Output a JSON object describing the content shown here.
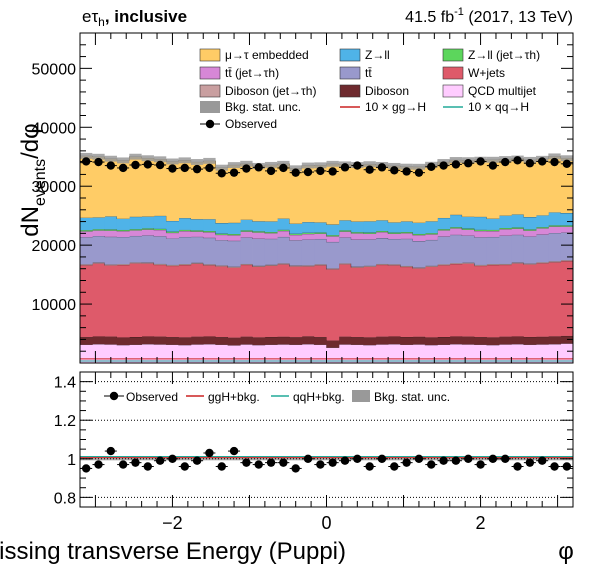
{
  "header": {
    "channel": "eτ",
    "channel_sub": "h",
    "category": ", inclusive",
    "lumi": "41.5 fb",
    "lumi_exp": "-1",
    "conditions": " (2017, 13 TeV)"
  },
  "axes": {
    "ylabel_main": "dN",
    "ylabel_sub": "events",
    "ylabel_tail": "/dφ",
    "xlabel": "Missing transverse Energy (Puppi)",
    "xlabel_symbol": "φ"
  },
  "legend_main": [
    {
      "label": "μ→τ embedded",
      "color": "#ffcc66",
      "kind": "box"
    },
    {
      "label": "Z→ll",
      "color": "#4fb3e8",
      "kind": "box"
    },
    {
      "label": "Z→ll (jet→τh)",
      "color": "#5cd65c",
      "kind": "box"
    },
    {
      "label": "tt̄ (jet→τh)",
      "color": "#d787d7",
      "kind": "box"
    },
    {
      "label": "tt̄",
      "color": "#9999cc",
      "kind": "box"
    },
    {
      "label": "W+jets",
      "color": "#de5a6a",
      "kind": "box"
    },
    {
      "label": "Diboson (jet→τh)",
      "color": "#c99fa0",
      "kind": "box"
    },
    {
      "label": "Diboson",
      "color": "#6e2a2e",
      "kind": "box"
    },
    {
      "label": "QCD multijet",
      "color": "#ffccff",
      "kind": "box"
    },
    {
      "label": "Bkg. stat. unc.",
      "color": "#999999",
      "kind": "band"
    },
    {
      "label": "10 × gg→H",
      "color": "#cc2222",
      "kind": "line"
    },
    {
      "label": "10 × qq→H",
      "color": "#22aa99",
      "kind": "line"
    },
    {
      "label": "Observed",
      "color": "#000000",
      "kind": "marker"
    }
  ],
  "legend_ratio": [
    {
      "label": "Observed",
      "kind": "marker",
      "color": "#000000"
    },
    {
      "label": "ggH+bkg.",
      "kind": "line",
      "color": "#cc2222"
    },
    {
      "label": "qqH+bkg.",
      "kind": "line",
      "color": "#22aa99"
    },
    {
      "label": "Bkg. stat. unc.",
      "kind": "band",
      "color": "#999999"
    }
  ],
  "chart_data": {
    "type": "bar",
    "stacked": true,
    "xlabel": "Missing transverse Energy (Puppi)  φ",
    "ylabel": "dNevents/dφ",
    "xlim": [
      -3.2,
      3.2
    ],
    "ylim": [
      0,
      56000
    ],
    "yticks": [
      10000,
      20000,
      30000,
      40000,
      50000
    ],
    "xticks": [
      -2,
      0,
      2
    ],
    "ratio_ylim": [
      0.75,
      1.45
    ],
    "ratio_yticks": [
      0.8,
      1,
      1.2,
      1.4
    ],
    "ratio_ylabels": [
      "0.8",
      "1",
      "1.2",
      "1.4"
    ],
    "n_bins": 40,
    "series": [
      {
        "name": "QCD multijet",
        "values": [
          3100,
          3200,
          3150,
          3050,
          3100,
          3200,
          3150,
          3100,
          3050,
          3150,
          3200,
          3100,
          3000,
          3150,
          3050,
          3100,
          3150,
          3100,
          3200,
          3100,
          2600,
          3150,
          3100,
          3050,
          3150,
          3200,
          3100,
          3150,
          3050,
          3100,
          3200,
          3150,
          3100,
          3050,
          3150,
          3200,
          3100,
          3150,
          3200,
          3300
        ]
      },
      {
        "name": "Diboson",
        "values": [
          1300,
          1300,
          1320,
          1280,
          1310,
          1300,
          1320,
          1300,
          1290,
          1310,
          1300,
          1300,
          1290,
          1310,
          1300,
          1320,
          1300,
          1290,
          1310,
          1300,
          1200,
          1310,
          1300,
          1290,
          1310,
          1300,
          1320,
          1300,
          1290,
          1310,
          1300,
          1320,
          1300,
          1290,
          1310,
          1300,
          1320,
          1300,
          1310,
          1300
        ]
      },
      {
        "name": "W+jets",
        "values": [
          12200,
          12400,
          12100,
          12300,
          12500,
          12400,
          12200,
          12100,
          12300,
          12400,
          12100,
          12000,
          11900,
          12200,
          12000,
          12100,
          12300,
          12000,
          11900,
          12200,
          12100,
          12300,
          11800,
          12000,
          12200,
          12100,
          11900,
          11600,
          12000,
          12200,
          12300,
          12400,
          12100,
          12300,
          12200,
          12400,
          12300,
          12500,
          12600,
          12700
        ]
      },
      {
        "name": "Diboson (jet→τh)",
        "values": [
          150,
          150,
          150,
          150,
          150,
          150,
          150,
          150,
          150,
          150,
          150,
          150,
          150,
          150,
          150,
          150,
          150,
          150,
          150,
          150,
          150,
          150,
          150,
          150,
          150,
          150,
          150,
          150,
          150,
          150,
          150,
          150,
          150,
          150,
          150,
          150,
          150,
          150,
          150,
          150
        ]
      },
      {
        "name": "tt̄",
        "values": [
          4600,
          4500,
          4700,
          4600,
          4500,
          4600,
          4700,
          4500,
          4600,
          4400,
          4500,
          4300,
          4400,
          4500,
          4600,
          4400,
          4500,
          4300,
          4400,
          4300,
          4500,
          4400,
          4600,
          4500,
          4400,
          4300,
          4600,
          4500,
          4400,
          4700,
          4800,
          4600,
          4700,
          4600,
          4800,
          4700,
          4600,
          4700,
          4800,
          4700
        ]
      },
      {
        "name": "tt̄ (jet→τh)",
        "values": [
          1000,
          950,
          1050,
          1000,
          950,
          1000,
          1050,
          950,
          1000,
          900,
          950,
          900,
          950,
          1000,
          1050,
          950,
          1000,
          900,
          950,
          900,
          950,
          1000,
          1050,
          950,
          1000,
          900,
          950,
          1000,
          950,
          1050,
          1100,
          1000,
          1050,
          1000,
          1100,
          1050,
          1000,
          1050,
          1100,
          1000
        ]
      },
      {
        "name": "Z→ll (jet→τh)",
        "values": [
          200,
          200,
          200,
          200,
          200,
          200,
          200,
          200,
          200,
          200,
          200,
          200,
          200,
          200,
          200,
          200,
          200,
          200,
          200,
          200,
          200,
          200,
          200,
          200,
          200,
          200,
          200,
          200,
          200,
          200,
          200,
          200,
          200,
          200,
          200,
          200,
          200,
          200,
          200,
          200
        ]
      },
      {
        "name": "Z→ll",
        "values": [
          2100,
          2000,
          2200,
          1900,
          2100,
          2000,
          2200,
          1800,
          2000,
          1900,
          2000,
          1800,
          1900,
          1800,
          1700,
          1800,
          1900,
          1700,
          1800,
          1700,
          1800,
          1700,
          1800,
          1900,
          1800,
          1700,
          1800,
          1900,
          2000,
          1900,
          2100,
          2000,
          2200,
          1900,
          2100,
          2200,
          2100,
          2000,
          2200,
          2100
        ]
      },
      {
        "name": "μ→τ embedded",
        "values": [
          10500,
          10300,
          9800,
          9900,
          10200,
          9900,
          9600,
          10100,
          9800,
          9700,
          9900,
          9400,
          9800,
          9500,
          9400,
          9600,
          9300,
          9400,
          9600,
          9700,
          10300,
          9500,
          9600,
          9700,
          9400,
          9600,
          9300,
          9500,
          9600,
          9500,
          9300,
          9600,
          9700,
          10000,
          9600,
          9500,
          9700,
          9600,
          9500,
          9300
        ]
      }
    ],
    "observed": [
      34200,
      34100,
      33500,
      33100,
      33600,
      33700,
      33600,
      33000,
      33100,
      32900,
      33100,
      32200,
      32300,
      33000,
      33200,
      32600,
      33100,
      32300,
      32400,
      32600,
      32500,
      33200,
      33500,
      32800,
      33200,
      32700,
      32500,
      32300,
      33300,
      33500,
      33700,
      33900,
      34200,
      33500,
      34100,
      34400,
      33900,
      34200,
      34100,
      33800
    ],
    "ratio": [
      0.95,
      0.97,
      1.04,
      0.97,
      0.98,
      0.96,
      0.99,
      1.0,
      0.96,
      0.99,
      1.03,
      0.96,
      1.04,
      0.98,
      0.97,
      0.98,
      0.98,
      0.95,
      1.0,
      0.97,
      0.98,
      0.99,
      1.0,
      0.96,
      1.0,
      0.96,
      0.98,
      1.0,
      0.97,
      0.99,
      0.99,
      1.0,
      0.97,
      1.0,
      1.0,
      0.96,
      0.98,
      0.99,
      0.96,
      0.96
    ]
  }
}
